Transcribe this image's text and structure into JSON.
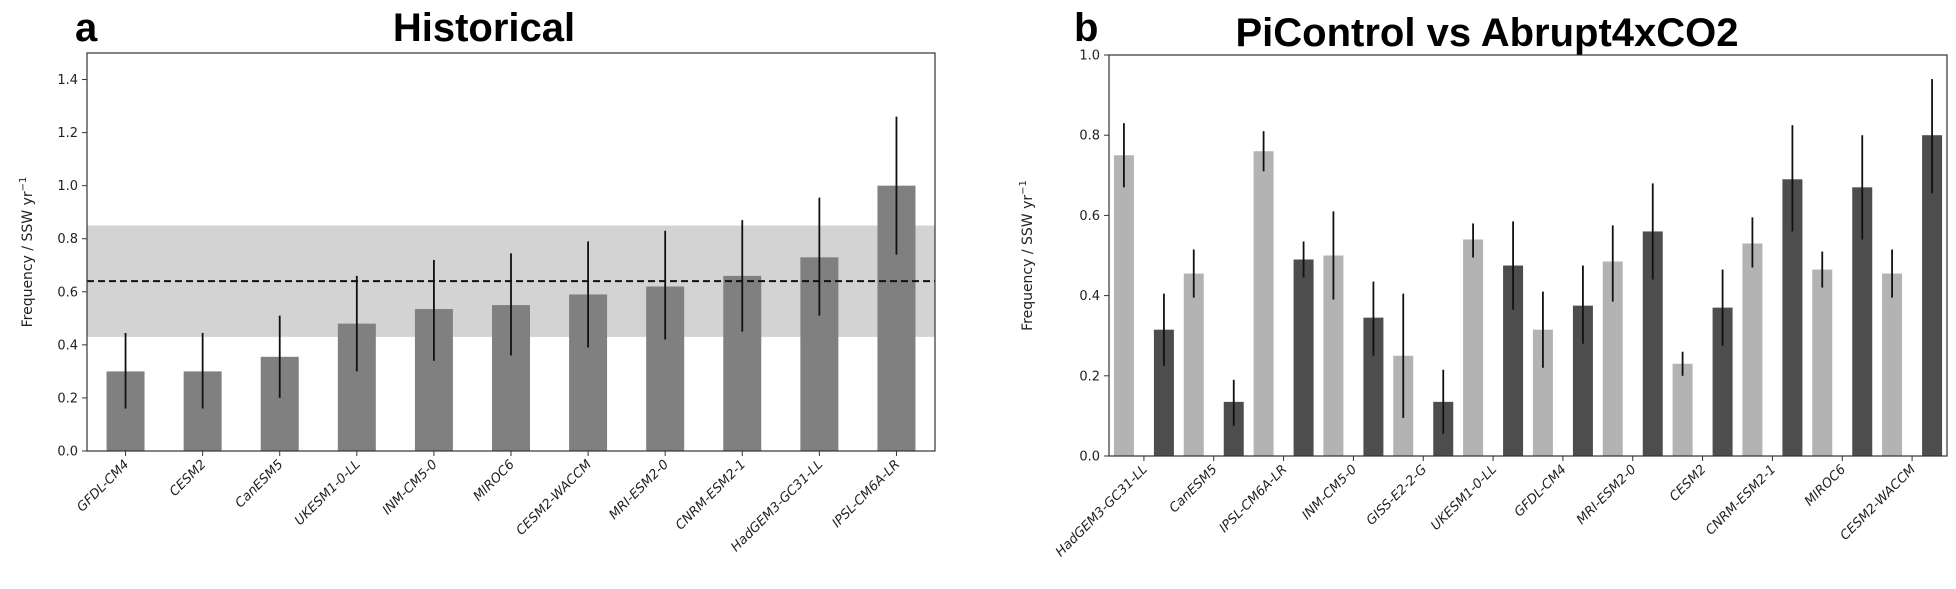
{
  "chart_data": [
    {
      "type": "bar",
      "panel_letter": "a",
      "title": "Historical",
      "xlabel": "",
      "ylabel": "Frequency / SSW yr",
      "ylabel_sup": "−1",
      "ylim": [
        0,
        1.5
      ],
      "yticks": [
        "0.0",
        "0.2",
        "0.4",
        "0.6",
        "0.8",
        "1.0",
        "1.2",
        "1.4"
      ],
      "categories": [
        "GFDL-CM4",
        "CESM2",
        "CanESM5",
        "UKESM1-0-LL",
        "INM-CM5-0",
        "MIROC6",
        "CESM2-WACCM",
        "MRI-ESM2-0",
        "CNRM-ESM2-1",
        "HadGEM3-GC31-LL",
        "IPSL-CM6A-LR"
      ],
      "series": [
        {
          "color": "#808080",
          "values": [
            0.3,
            0.3,
            0.355,
            0.48,
            0.535,
            0.55,
            0.59,
            0.62,
            0.66,
            0.73,
            1.0
          ],
          "err_low": [
            0.16,
            0.16,
            0.2,
            0.3,
            0.34,
            0.36,
            0.39,
            0.42,
            0.45,
            0.51,
            0.74
          ],
          "err_high": [
            0.445,
            0.445,
            0.51,
            0.66,
            0.72,
            0.745,
            0.79,
            0.83,
            0.87,
            0.955,
            1.26
          ]
        }
      ],
      "reference": {
        "line": 0.64,
        "band": [
          0.43,
          0.85
        ],
        "line_style": "dashed",
        "band_color": "#d3d3d3"
      },
      "grid": false,
      "legend": "none"
    },
    {
      "type": "bar",
      "panel_letter": "b",
      "title": "PiControl vs Abrupt4xCO2",
      "xlabel": "",
      "ylabel": "Frequency / SSW yr",
      "ylabel_sup": "−1",
      "ylim": [
        0,
        1.0
      ],
      "yticks": [
        "0.0",
        "0.2",
        "0.4",
        "0.6",
        "0.8",
        "1.0"
      ],
      "categories": [
        "HadGEM3-GC31-LL",
        "CanESM5",
        "IPSL-CM6A-LR",
        "INM-CM5-0",
        "GISS-E2-2-G",
        "UKESM1-0-LL",
        "GFDL-CM4",
        "MRI-ESM2-0",
        "CESM2",
        "CNRM-ESM2-1",
        "MIROC6",
        "CESM2-WACCM"
      ],
      "series": [
        {
          "color": "#b3b3b3",
          "values": [
            0.75,
            0.455,
            0.76,
            0.5,
            0.25,
            0.54,
            0.315,
            0.485,
            0.23,
            0.53,
            0.465,
            0.455
          ],
          "err_low": [
            0.67,
            0.395,
            0.71,
            0.39,
            0.095,
            0.495,
            0.22,
            0.385,
            0.2,
            0.47,
            0.42,
            0.395
          ],
          "err_high": [
            0.83,
            0.515,
            0.81,
            0.61,
            0.405,
            0.58,
            0.41,
            0.575,
            0.26,
            0.595,
            0.51,
            0.515
          ]
        },
        {
          "color": "#4d4d4d",
          "values": [
            0.315,
            0.135,
            0.49,
            0.345,
            0.135,
            0.475,
            0.375,
            0.56,
            0.37,
            0.69,
            0.67,
            0.8
          ],
          "err_low": [
            0.225,
            0.075,
            0.445,
            0.25,
            0.055,
            0.365,
            0.28,
            0.44,
            0.275,
            0.56,
            0.54,
            0.655
          ],
          "err_high": [
            0.405,
            0.19,
            0.535,
            0.435,
            0.215,
            0.585,
            0.475,
            0.68,
            0.465,
            0.825,
            0.8,
            0.94
          ]
        }
      ],
      "grid": false,
      "legend": "none"
    }
  ]
}
